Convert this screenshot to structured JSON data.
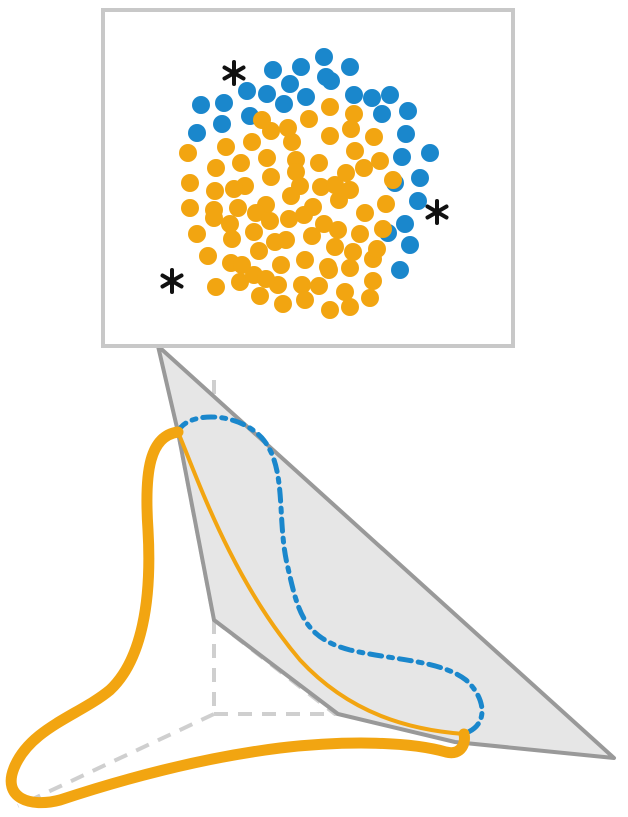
{
  "colors": {
    "blue": "#1a87cc",
    "orange": "#f2a511",
    "frame": "#c8c8c8",
    "plane_fill": "#e6e6e6",
    "plane_edge": "#999999",
    "axis": "#cfcfcf",
    "star": "#111111"
  },
  "scatter": {
    "blue_count": 31,
    "orange_count": 86,
    "outlier_count": 3,
    "outlier_icon": "asterisk-icon"
  },
  "manifold": {
    "curve_styles": [
      "solid",
      "dashed"
    ]
  }
}
